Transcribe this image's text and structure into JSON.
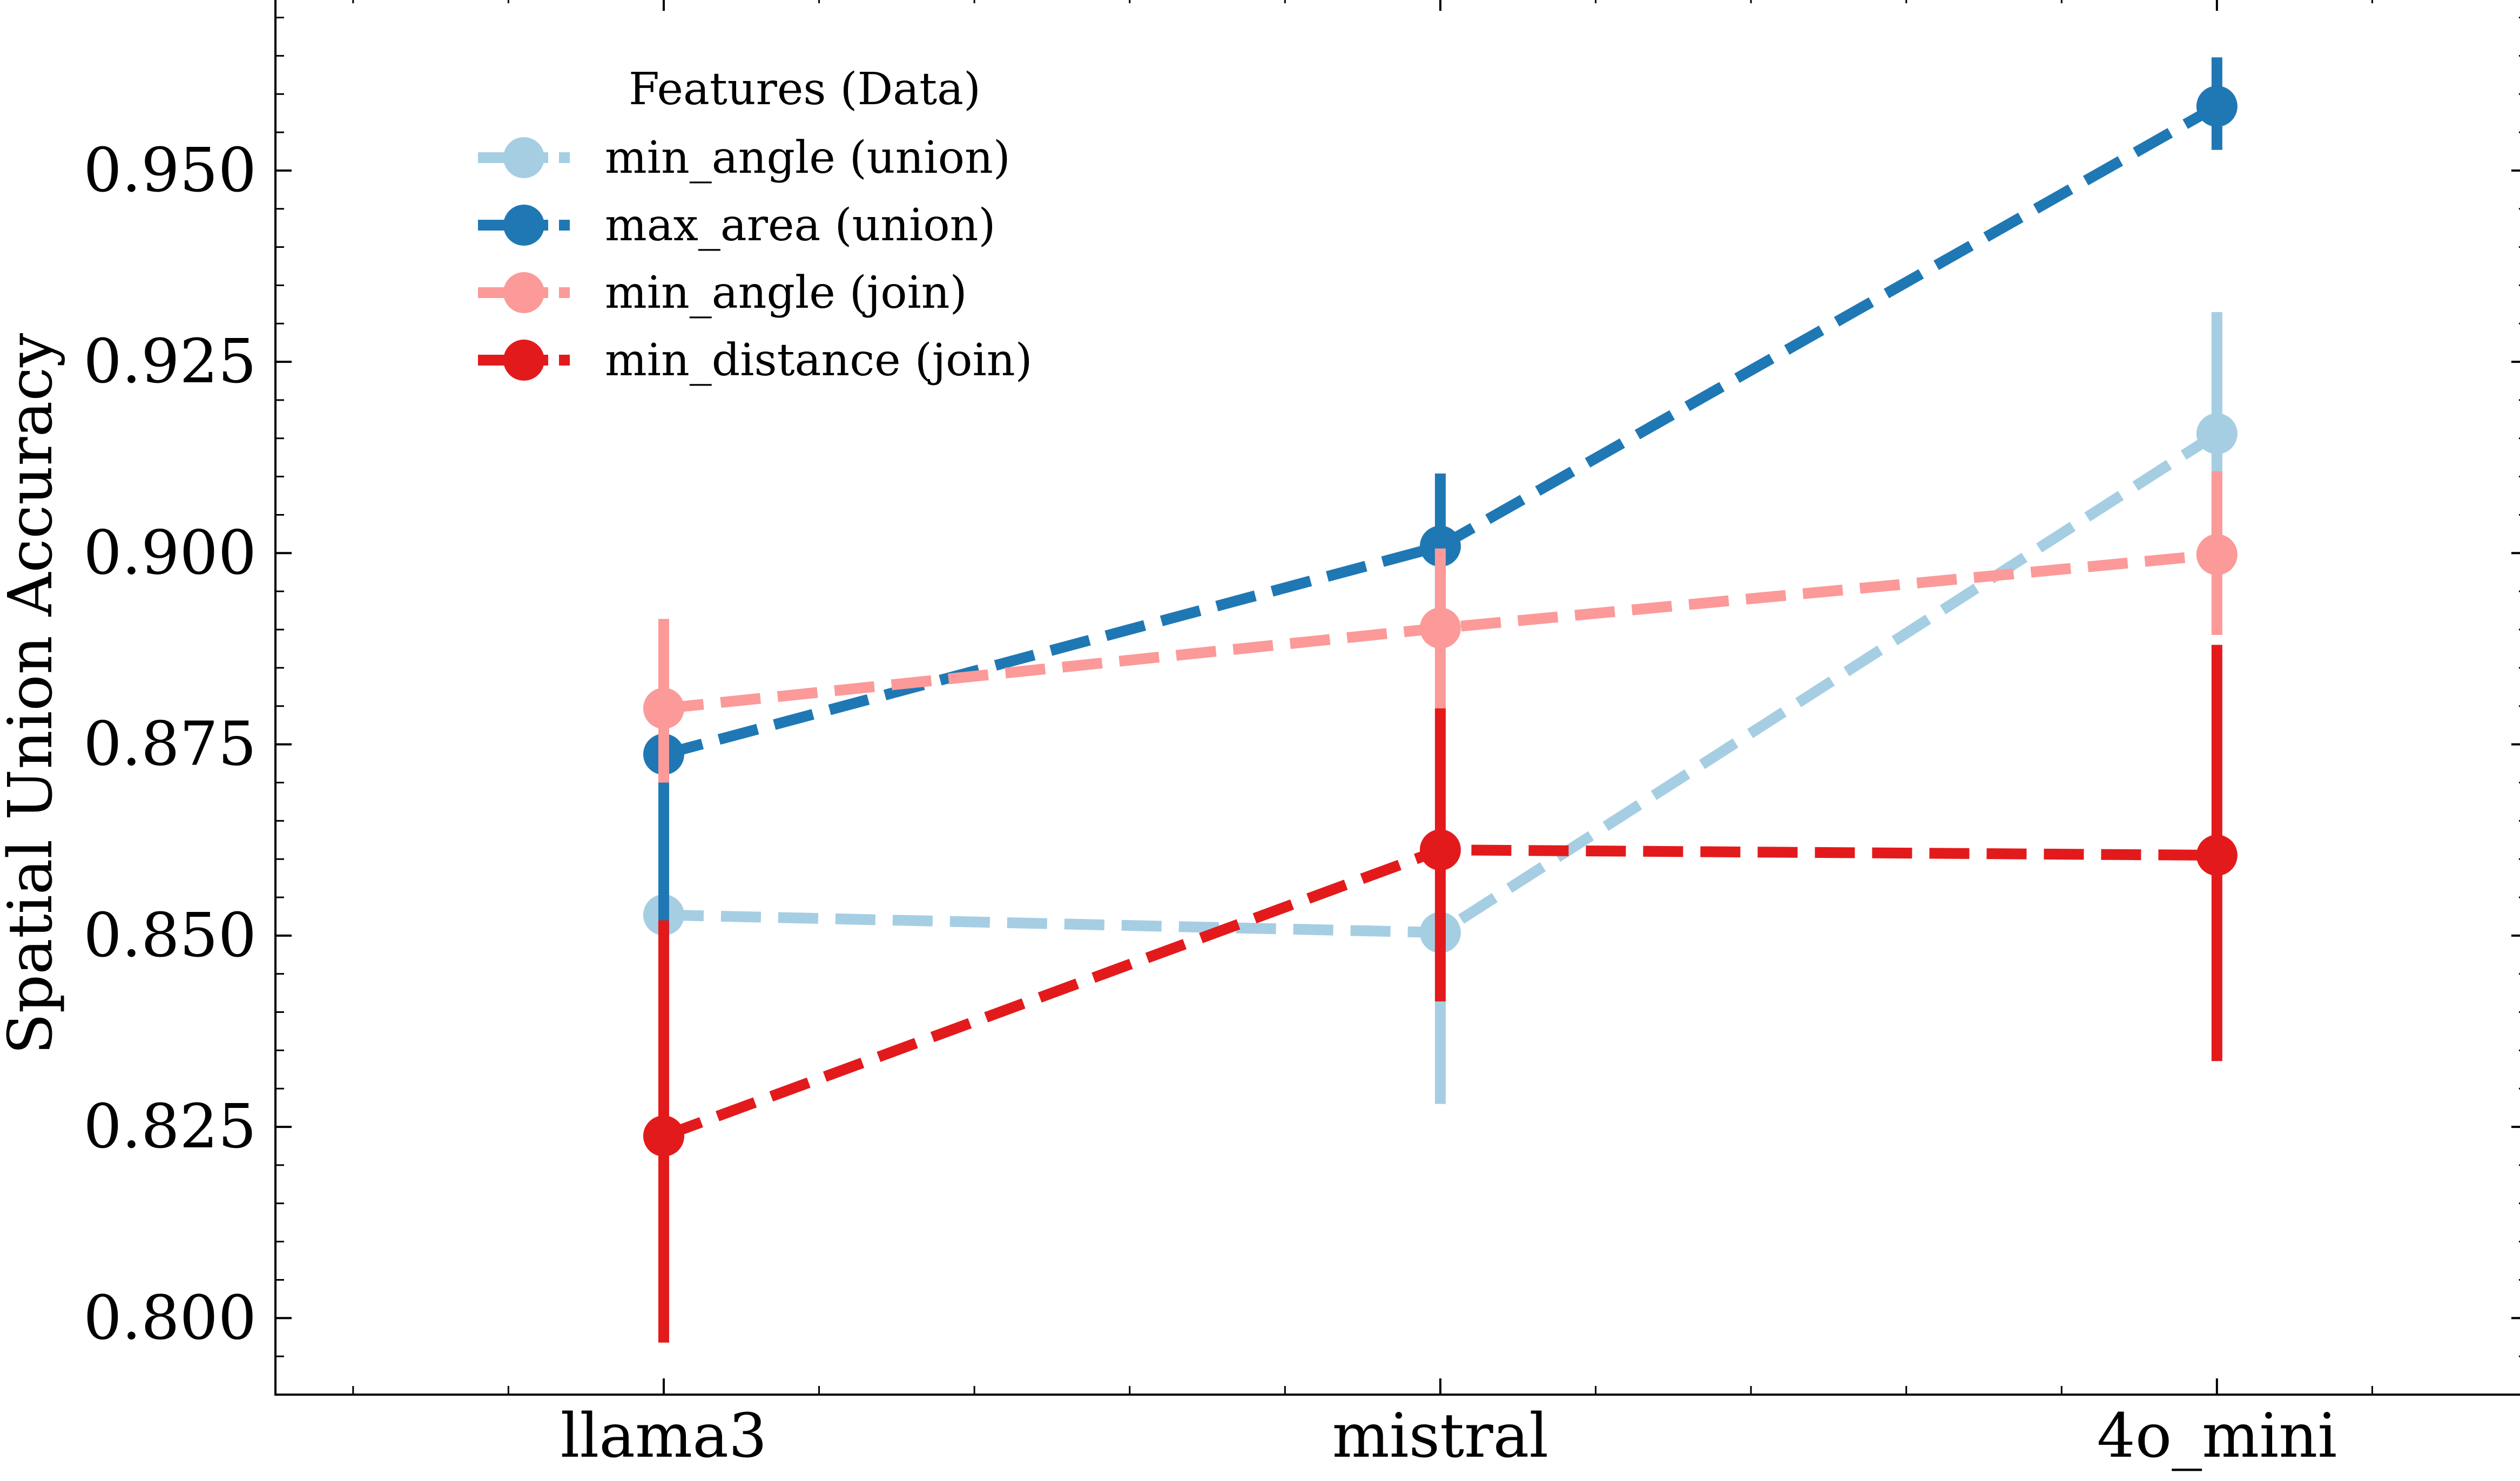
{
  "chart_data": {
    "type": "line",
    "title": "",
    "xlabel": "",
    "ylabel": "Spatial Union Accuracy",
    "categories": [
      "llama3",
      "mistral",
      "4o_mini"
    ],
    "ylim": [
      0.79,
      0.973
    ],
    "xlim": [
      -0.5,
      2.4
    ],
    "y_ticks": [
      0.8,
      0.825,
      0.85,
      0.875,
      0.9,
      0.925,
      0.95
    ],
    "y_tick_labels": [
      "0.800",
      "0.825",
      "0.850",
      "0.875",
      "0.900",
      "0.925",
      "0.950"
    ],
    "x_minor_step": 0.2,
    "y_minor_step": 0.005,
    "grid": false,
    "legend": {
      "title": "Features (Data)",
      "placement": "upper-left"
    },
    "series": [
      {
        "name": "min_angle (union)",
        "color": "#a6cee3",
        "values": [
          0.8527,
          0.8504,
          0.9156
        ],
        "err_low": [
          0.8527,
          0.828,
          0.8995
        ],
        "err_high": [
          0.8527,
          0.8418,
          0.9315
        ]
      },
      {
        "name": "max_area (union)",
        "color": "#1f78b4",
        "values": [
          0.8737,
          0.9009,
          0.9584
        ],
        "err_low": [
          0.85,
          0.8911,
          0.9527
        ],
        "err_high": [
          0.8737,
          0.9104,
          0.9648
        ]
      },
      {
        "name": "min_angle (join)",
        "color": "#fb9a99",
        "values": [
          0.8797,
          0.8902,
          0.8998
        ],
        "err_low": [
          0.87,
          0.8797,
          0.8893
        ],
        "err_high": [
          0.8914,
          0.9006,
          0.9107
        ]
      },
      {
        "name": "min_distance (join)",
        "color": "#e31a1c",
        "values": [
          0.8238,
          0.8612,
          0.8605
        ],
        "err_low": [
          0.7968,
          0.8414,
          0.8336
        ],
        "err_high": [
          0.852,
          0.8797,
          0.888
        ]
      }
    ]
  }
}
